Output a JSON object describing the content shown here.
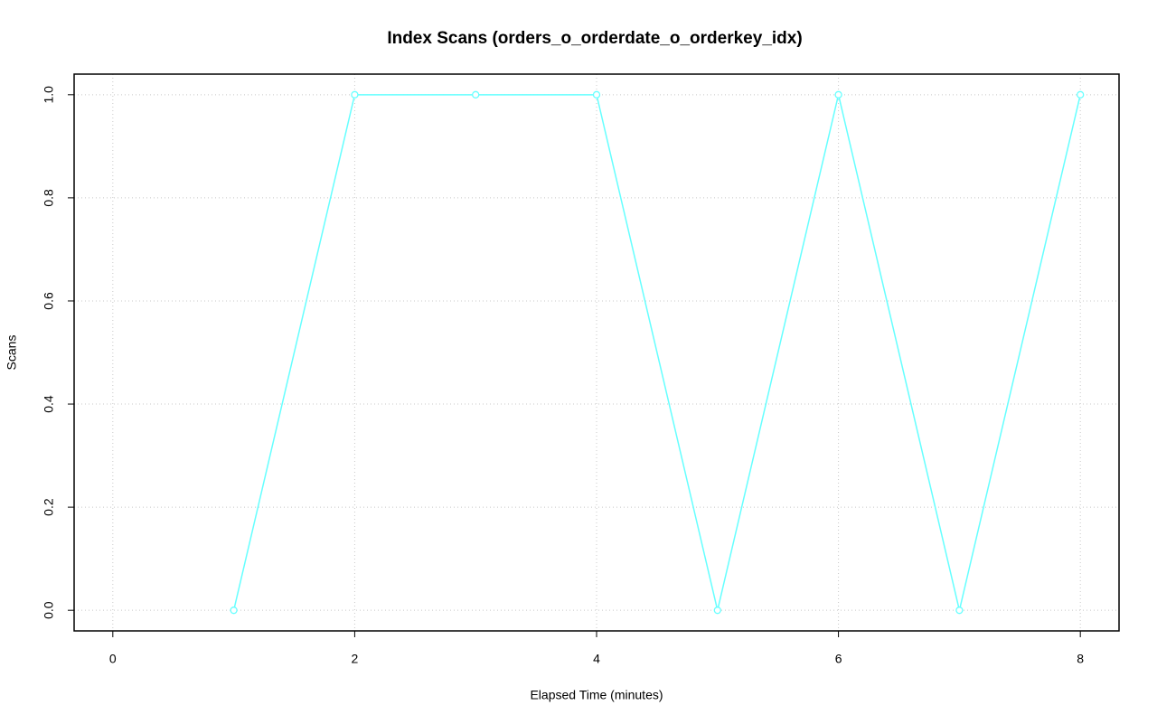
{
  "chart_data": {
    "type": "line",
    "title": "Index Scans (orders_o_orderdate_o_orderkey_idx)",
    "xlabel": "Elapsed Time (minutes)",
    "ylabel": "Scans",
    "x": [
      1,
      2,
      3,
      4,
      5,
      6,
      7,
      8
    ],
    "values": [
      0,
      1,
      1,
      1,
      0,
      1,
      0,
      1
    ],
    "color": "#66ffff",
    "xlim": [
      -0.32,
      8.32
    ],
    "ylim": [
      -0.04,
      1.04
    ],
    "xticks": [
      0,
      2,
      4,
      6,
      8
    ],
    "yticks": [
      {
        "value": 0,
        "label": "0.0"
      },
      0.2,
      0.4,
      0.6,
      0.8,
      {
        "value": 1,
        "label": "1.0"
      }
    ],
    "grid": true
  }
}
